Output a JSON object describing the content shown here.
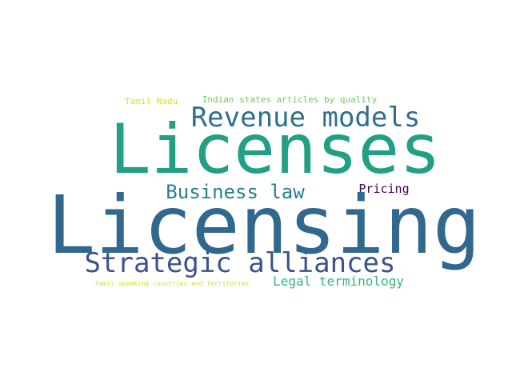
{
  "words": {
    "licenses": {
      "text": "Licenses",
      "color": "#22a085"
    },
    "licensing": {
      "text": "Licensing",
      "color": "#31688e"
    },
    "revenue_models": {
      "text": "Revenue models",
      "color": "#2e6f8e"
    },
    "strategic_alliances": {
      "text": "Strategic alliances",
      "color": "#3b528b"
    },
    "business_law": {
      "text": "Business law",
      "color": "#277f8e"
    },
    "legal_terminology": {
      "text": "Legal terminology",
      "color": "#35b779"
    },
    "pricing": {
      "text": "Pricing",
      "color": "#440154"
    },
    "tamil_nadu": {
      "text": "Tamil Nadu",
      "color": "#dde318"
    },
    "indian_states": {
      "text": "Indian states articles by quality",
      "color": "#6ece58"
    },
    "tamil_speaking": {
      "text": "Tamil-speaking countries and territories",
      "color": "#d2e21b"
    }
  }
}
